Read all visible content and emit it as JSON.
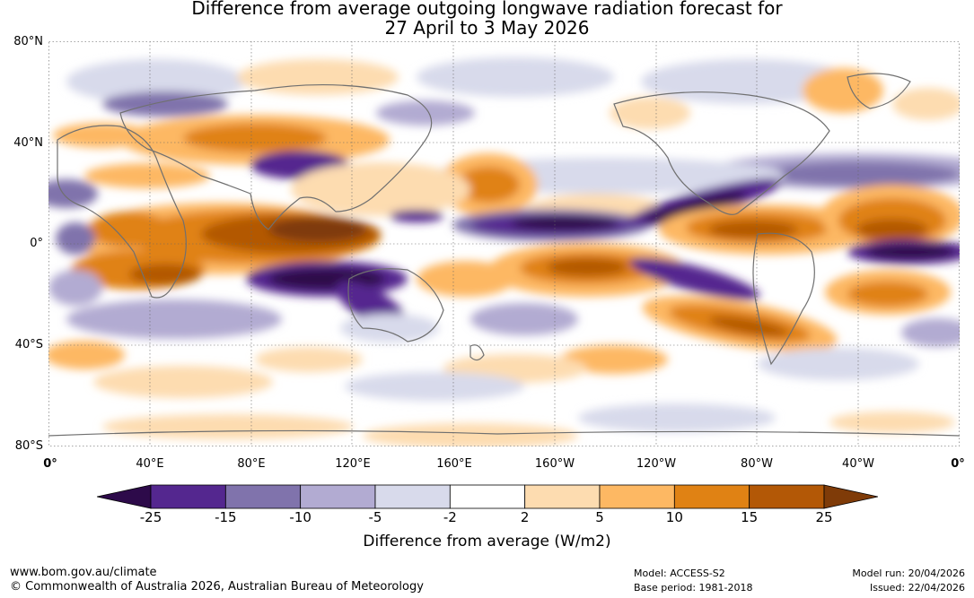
{
  "title": {
    "line1": "Difference from average outgoing longwave radiation forecast for",
    "line2": "27 April to 3 May 2026"
  },
  "map": {
    "latitude_labels": [
      "80°N",
      "40°N",
      "0°",
      "40°S",
      "80°S"
    ],
    "longitude_labels": [
      "0°",
      "40°E",
      "80°E",
      "120°E",
      "160°E",
      "160°W",
      "120°W",
      "80°W",
      "40°W",
      "0°"
    ]
  },
  "colorbar": {
    "ticks": [
      "-25",
      "-15",
      "-10",
      "-5",
      "-2",
      "2",
      "5",
      "10",
      "15",
      "25"
    ],
    "colors": [
      "#2d0a4a",
      "#54278f",
      "#8073ac",
      "#b2abd2",
      "#d8daeb",
      "#ffffff",
      "#fddcb0",
      "#fdb863",
      "#e08214",
      "#b35806",
      "#7f3b08"
    ],
    "title": "Difference from average (W/m2)"
  },
  "footer": {
    "site": "www.bom.gov.au/climate",
    "copyright": "© Commonwealth of Australia 2026, Australian Bureau of Meteorology",
    "model": "Model: ACCESS-S2",
    "base_period": "Base period: 1981-2018",
    "model_run": "Model run: 20/04/2026",
    "issued": "Issued: 22/04/2026"
  }
}
